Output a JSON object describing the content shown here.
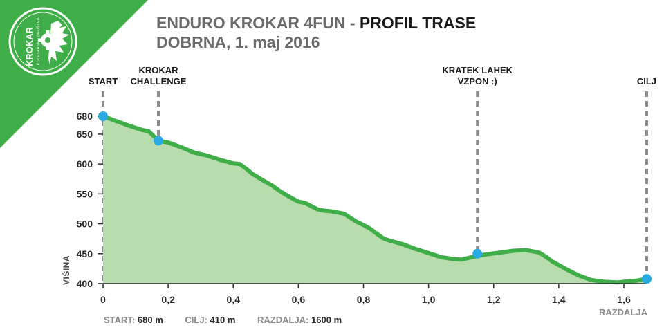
{
  "logo": {
    "name": "KROKAR",
    "subtitle": "KOLESARSKO DRUŠTVO"
  },
  "title": {
    "part1": "ENDURO KROKAR 4FUN",
    "separator": " - ",
    "part2": "PROFIL TRASE",
    "line2": "DOBRNA, 1. maj 2016"
  },
  "stats": {
    "start_label": "START:",
    "start_value": "680 m",
    "finish_label": "CILJ:",
    "finish_value": "410 m",
    "distance_label": "RAZDALJA:",
    "distance_value": "1600 m"
  },
  "colors": {
    "brand_green": "#3fae49",
    "line_green": "#3fae49",
    "fill_green": "#b9dcae",
    "marker_blue": "#29abe2",
    "marker_line": "#8a8a8a"
  },
  "chart_data": {
    "type": "area",
    "xlabel": "RAZDALJA",
    "ylabel": "VIŠINA",
    "xlim": [
      0,
      1.68
    ],
    "ylim": [
      400,
      690
    ],
    "x_ticks": [
      "0",
      "0,2",
      "0,4",
      "0,6",
      "0,8",
      "1,0",
      "1,2",
      "1,4",
      "1,6"
    ],
    "x_tick_values": [
      0,
      0.2,
      0.4,
      0.6,
      0.8,
      1.0,
      1.2,
      1.4,
      1.6
    ],
    "y_ticks": [
      "400",
      "450",
      "500",
      "550",
      "600",
      "650",
      "680"
    ],
    "y_tick_values": [
      400,
      450,
      500,
      550,
      600,
      650,
      680
    ],
    "grid": false,
    "series": [
      {
        "x": [
          0,
          0.04,
          0.08,
          0.12,
          0.14,
          0.17,
          0.2,
          0.24,
          0.28,
          0.32,
          0.36,
          0.4,
          0.42,
          0.44,
          0.46,
          0.5,
          0.52,
          0.54,
          0.56,
          0.6,
          0.62,
          0.66,
          0.68,
          0.7,
          0.74,
          0.78,
          0.8,
          0.82,
          0.84,
          0.86,
          0.88,
          0.9,
          0.92,
          0.96,
          1.0,
          1.04,
          1.08,
          1.1,
          1.14,
          1.18,
          1.22,
          1.26,
          1.3,
          1.34,
          1.36,
          1.38,
          1.42,
          1.46,
          1.5,
          1.54,
          1.58,
          1.6,
          1.64,
          1.66,
          1.68
        ],
        "y": [
          680,
          672,
          664,
          657,
          655,
          639,
          636,
          628,
          619,
          614,
          607,
          601,
          600,
          592,
          583,
          570,
          564,
          556,
          549,
          537,
          535,
          524,
          522,
          521,
          517,
          503,
          498,
          492,
          484,
          476,
          472,
          469,
          466,
          458,
          451,
          444,
          441,
          440,
          445,
          449,
          452,
          455,
          456,
          452,
          445,
          437,
          425,
          414,
          406,
          403,
          402,
          403,
          405,
          407,
          408
        ]
      }
    ],
    "annotations": [
      {
        "label_lines": [
          "START"
        ],
        "x": 0,
        "y": 680
      },
      {
        "label_lines": [
          "KROKAR",
          "CHALLENGE"
        ],
        "x": 0.17,
        "y": 639
      },
      {
        "label_lines": [
          "KRATEK LAHEK",
          "VZPON :)"
        ],
        "x": 1.15,
        "y": 450
      },
      {
        "label_lines": [
          "CILJ"
        ],
        "x": 1.67,
        "y": 408
      }
    ]
  }
}
